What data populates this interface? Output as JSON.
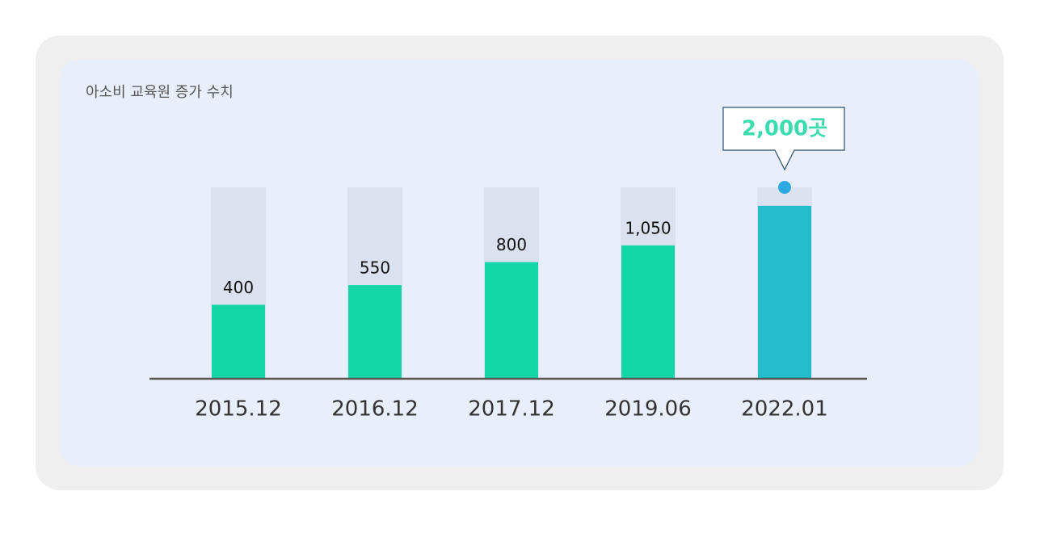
{
  "chart_data": {
    "type": "bar",
    "title": "아소비 교육원 증가 수치",
    "categories": [
      "2015.12",
      "2016.12",
      "2017.12",
      "2019.06",
      "2022.01"
    ],
    "values": [
      400,
      550,
      800,
      1050,
      2000
    ],
    "value_labels": [
      "400",
      "550",
      "800",
      "1,050",
      "2,000곳"
    ],
    "colors": [
      "#14d5a7",
      "#14d5a7",
      "#14d5a7",
      "#14d5a7",
      "#25bccd"
    ],
    "log_scale": true,
    "ylim": [
      120,
      2700
    ]
  }
}
